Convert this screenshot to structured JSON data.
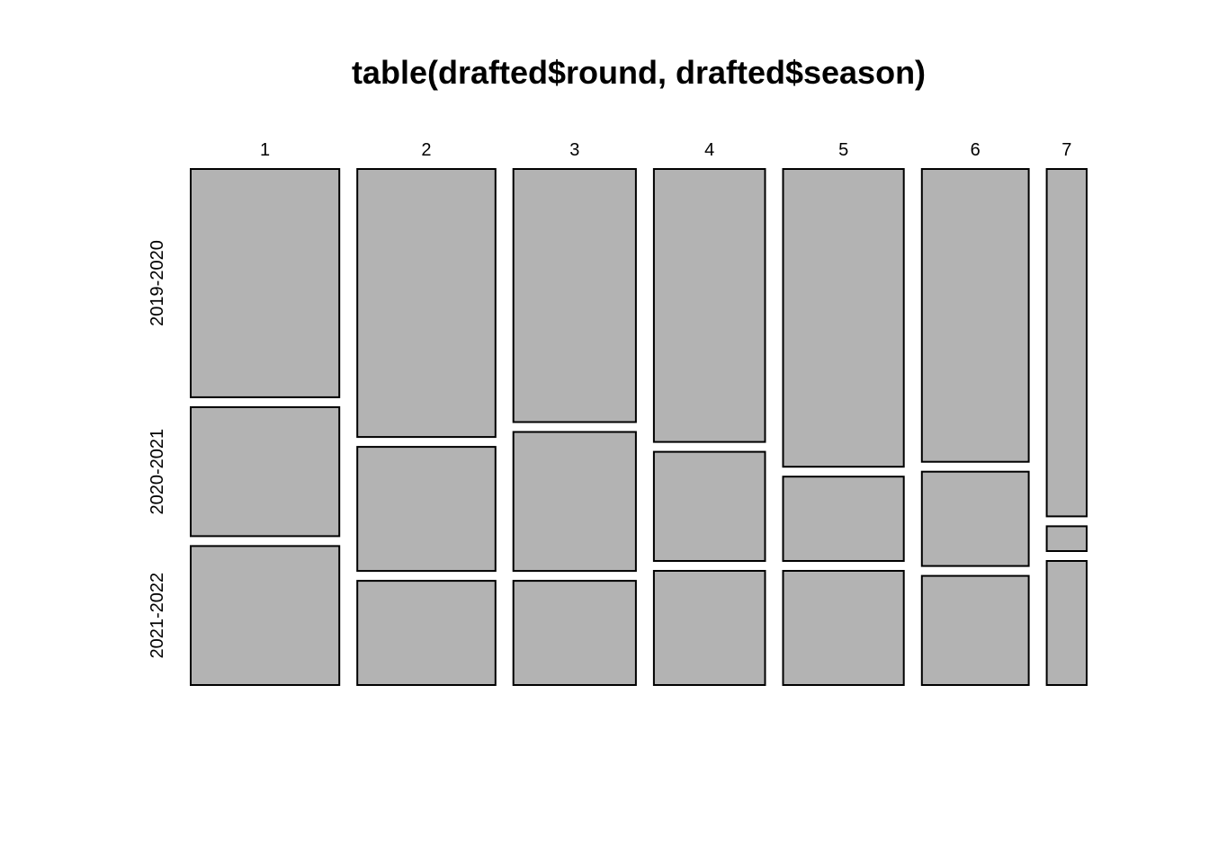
{
  "chart_data": {
    "type": "mosaic",
    "title": "table(drafted$round, drafted$season)",
    "xlabel": "",
    "ylabel": "",
    "categories": [
      "1",
      "2",
      "3",
      "4",
      "5",
      "6",
      "7"
    ],
    "row_categories": [
      "2019-2020",
      "2020-2021",
      "2021-2022"
    ],
    "column_proportions": [
      0.171,
      0.159,
      0.141,
      0.128,
      0.139,
      0.123,
      0.046
    ],
    "series": [
      {
        "name": "2019-2020",
        "values": [
          0.46,
          0.54,
          0.51,
          0.55,
          0.6,
          0.59,
          0.7
        ]
      },
      {
        "name": "2020-2021",
        "values": [
          0.26,
          0.25,
          0.28,
          0.22,
          0.17,
          0.19,
          0.05
        ]
      },
      {
        "name": "2021-2022",
        "values": [
          0.28,
          0.21,
          0.21,
          0.23,
          0.23,
          0.22,
          0.25
        ]
      }
    ],
    "fill_color": "#b3b3b3",
    "border_color": "#000000",
    "grid": false,
    "legend": "none"
  }
}
